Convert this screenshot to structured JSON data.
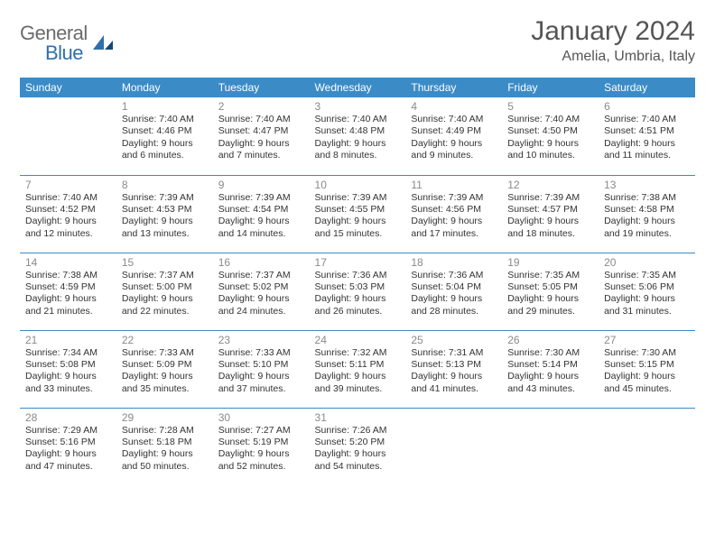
{
  "logo": {
    "text_gray": "General",
    "text_blue": "Blue"
  },
  "title": "January 2024",
  "location": "Amelia, Umbria, Italy",
  "colors": {
    "header_bg": "#3b8bc7",
    "header_fg": "#ffffff",
    "row_border": "#3b8bc7",
    "daynum": "#8a8a8a",
    "body_text": "#333333",
    "title_text": "#555555",
    "logo_gray": "#6b6b6b",
    "logo_blue": "#2f6fab"
  },
  "weekdays": [
    "Sunday",
    "Monday",
    "Tuesday",
    "Wednesday",
    "Thursday",
    "Friday",
    "Saturday"
  ],
  "weeks": [
    [
      null,
      {
        "n": "1",
        "sr": "Sunrise: 7:40 AM",
        "ss": "Sunset: 4:46 PM",
        "d1": "Daylight: 9 hours",
        "d2": "and 6 minutes."
      },
      {
        "n": "2",
        "sr": "Sunrise: 7:40 AM",
        "ss": "Sunset: 4:47 PM",
        "d1": "Daylight: 9 hours",
        "d2": "and 7 minutes."
      },
      {
        "n": "3",
        "sr": "Sunrise: 7:40 AM",
        "ss": "Sunset: 4:48 PM",
        "d1": "Daylight: 9 hours",
        "d2": "and 8 minutes."
      },
      {
        "n": "4",
        "sr": "Sunrise: 7:40 AM",
        "ss": "Sunset: 4:49 PM",
        "d1": "Daylight: 9 hours",
        "d2": "and 9 minutes."
      },
      {
        "n": "5",
        "sr": "Sunrise: 7:40 AM",
        "ss": "Sunset: 4:50 PM",
        "d1": "Daylight: 9 hours",
        "d2": "and 10 minutes."
      },
      {
        "n": "6",
        "sr": "Sunrise: 7:40 AM",
        "ss": "Sunset: 4:51 PM",
        "d1": "Daylight: 9 hours",
        "d2": "and 11 minutes."
      }
    ],
    [
      {
        "n": "7",
        "sr": "Sunrise: 7:40 AM",
        "ss": "Sunset: 4:52 PM",
        "d1": "Daylight: 9 hours",
        "d2": "and 12 minutes."
      },
      {
        "n": "8",
        "sr": "Sunrise: 7:39 AM",
        "ss": "Sunset: 4:53 PM",
        "d1": "Daylight: 9 hours",
        "d2": "and 13 minutes."
      },
      {
        "n": "9",
        "sr": "Sunrise: 7:39 AM",
        "ss": "Sunset: 4:54 PM",
        "d1": "Daylight: 9 hours",
        "d2": "and 14 minutes."
      },
      {
        "n": "10",
        "sr": "Sunrise: 7:39 AM",
        "ss": "Sunset: 4:55 PM",
        "d1": "Daylight: 9 hours",
        "d2": "and 15 minutes."
      },
      {
        "n": "11",
        "sr": "Sunrise: 7:39 AM",
        "ss": "Sunset: 4:56 PM",
        "d1": "Daylight: 9 hours",
        "d2": "and 17 minutes."
      },
      {
        "n": "12",
        "sr": "Sunrise: 7:39 AM",
        "ss": "Sunset: 4:57 PM",
        "d1": "Daylight: 9 hours",
        "d2": "and 18 minutes."
      },
      {
        "n": "13",
        "sr": "Sunrise: 7:38 AM",
        "ss": "Sunset: 4:58 PM",
        "d1": "Daylight: 9 hours",
        "d2": "and 19 minutes."
      }
    ],
    [
      {
        "n": "14",
        "sr": "Sunrise: 7:38 AM",
        "ss": "Sunset: 4:59 PM",
        "d1": "Daylight: 9 hours",
        "d2": "and 21 minutes."
      },
      {
        "n": "15",
        "sr": "Sunrise: 7:37 AM",
        "ss": "Sunset: 5:00 PM",
        "d1": "Daylight: 9 hours",
        "d2": "and 22 minutes."
      },
      {
        "n": "16",
        "sr": "Sunrise: 7:37 AM",
        "ss": "Sunset: 5:02 PM",
        "d1": "Daylight: 9 hours",
        "d2": "and 24 minutes."
      },
      {
        "n": "17",
        "sr": "Sunrise: 7:36 AM",
        "ss": "Sunset: 5:03 PM",
        "d1": "Daylight: 9 hours",
        "d2": "and 26 minutes."
      },
      {
        "n": "18",
        "sr": "Sunrise: 7:36 AM",
        "ss": "Sunset: 5:04 PM",
        "d1": "Daylight: 9 hours",
        "d2": "and 28 minutes."
      },
      {
        "n": "19",
        "sr": "Sunrise: 7:35 AM",
        "ss": "Sunset: 5:05 PM",
        "d1": "Daylight: 9 hours",
        "d2": "and 29 minutes."
      },
      {
        "n": "20",
        "sr": "Sunrise: 7:35 AM",
        "ss": "Sunset: 5:06 PM",
        "d1": "Daylight: 9 hours",
        "d2": "and 31 minutes."
      }
    ],
    [
      {
        "n": "21",
        "sr": "Sunrise: 7:34 AM",
        "ss": "Sunset: 5:08 PM",
        "d1": "Daylight: 9 hours",
        "d2": "and 33 minutes."
      },
      {
        "n": "22",
        "sr": "Sunrise: 7:33 AM",
        "ss": "Sunset: 5:09 PM",
        "d1": "Daylight: 9 hours",
        "d2": "and 35 minutes."
      },
      {
        "n": "23",
        "sr": "Sunrise: 7:33 AM",
        "ss": "Sunset: 5:10 PM",
        "d1": "Daylight: 9 hours",
        "d2": "and 37 minutes."
      },
      {
        "n": "24",
        "sr": "Sunrise: 7:32 AM",
        "ss": "Sunset: 5:11 PM",
        "d1": "Daylight: 9 hours",
        "d2": "and 39 minutes."
      },
      {
        "n": "25",
        "sr": "Sunrise: 7:31 AM",
        "ss": "Sunset: 5:13 PM",
        "d1": "Daylight: 9 hours",
        "d2": "and 41 minutes."
      },
      {
        "n": "26",
        "sr": "Sunrise: 7:30 AM",
        "ss": "Sunset: 5:14 PM",
        "d1": "Daylight: 9 hours",
        "d2": "and 43 minutes."
      },
      {
        "n": "27",
        "sr": "Sunrise: 7:30 AM",
        "ss": "Sunset: 5:15 PM",
        "d1": "Daylight: 9 hours",
        "d2": "and 45 minutes."
      }
    ],
    [
      {
        "n": "28",
        "sr": "Sunrise: 7:29 AM",
        "ss": "Sunset: 5:16 PM",
        "d1": "Daylight: 9 hours",
        "d2": "and 47 minutes."
      },
      {
        "n": "29",
        "sr": "Sunrise: 7:28 AM",
        "ss": "Sunset: 5:18 PM",
        "d1": "Daylight: 9 hours",
        "d2": "and 50 minutes."
      },
      {
        "n": "30",
        "sr": "Sunrise: 7:27 AM",
        "ss": "Sunset: 5:19 PM",
        "d1": "Daylight: 9 hours",
        "d2": "and 52 minutes."
      },
      {
        "n": "31",
        "sr": "Sunrise: 7:26 AM",
        "ss": "Sunset: 5:20 PM",
        "d1": "Daylight: 9 hours",
        "d2": "and 54 minutes."
      },
      null,
      null,
      null
    ]
  ]
}
